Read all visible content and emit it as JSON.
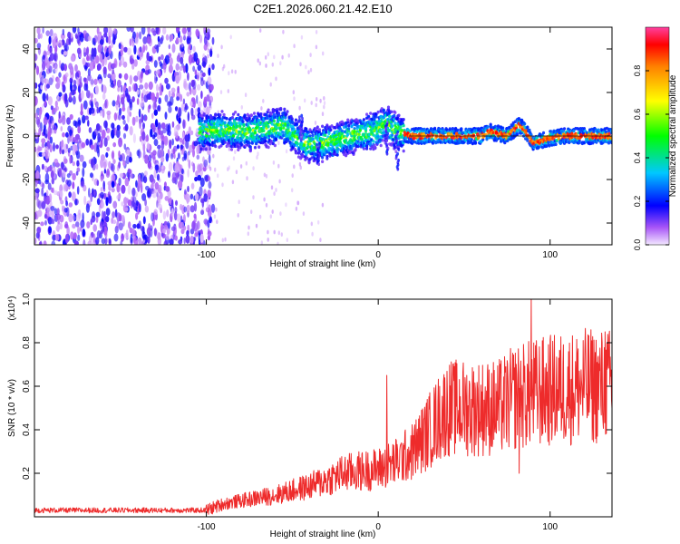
{
  "figure_title": "C2E1.2026.060.21.42.E10",
  "chart_data": [
    {
      "type": "heatmap",
      "title": "C2E1.2026.060.21.42.E10",
      "xlabel": "Height of straight line (km)",
      "ylabel": "Frequency (Hz)",
      "xlim": [
        -200,
        136
      ],
      "ylim": [
        -50,
        50
      ],
      "xticks": [
        -100,
        0,
        100
      ],
      "xtick_labels": [
        "-100",
        "0",
        "100"
      ],
      "yticks": [
        -40,
        -20,
        0,
        20,
        40
      ],
      "ytick_labels": [
        "-40",
        "-20",
        "0",
        "20",
        "40"
      ],
      "noise_region_x": [
        -200,
        -100
      ],
      "signal_center_hz": [
        {
          "x": -104,
          "y": 2
        },
        {
          "x": -90,
          "y": 3
        },
        {
          "x": -75,
          "y": 2
        },
        {
          "x": -60,
          "y": 4
        },
        {
          "x": -55,
          "y": 5
        },
        {
          "x": -50,
          "y": 1
        },
        {
          "x": -45,
          "y": -2
        },
        {
          "x": -40,
          "y": -4
        },
        {
          "x": -30,
          "y": -3
        },
        {
          "x": -20,
          "y": -1
        },
        {
          "x": -10,
          "y": 1
        },
        {
          "x": 0,
          "y": 3
        },
        {
          "x": 5,
          "y": 6
        },
        {
          "x": 10,
          "y": 2
        },
        {
          "x": 20,
          "y": 0
        },
        {
          "x": 40,
          "y": 0
        },
        {
          "x": 60,
          "y": 0
        },
        {
          "x": 65,
          "y": 2
        },
        {
          "x": 70,
          "y": 1
        },
        {
          "x": 75,
          "y": 0
        },
        {
          "x": 82,
          "y": 5
        },
        {
          "x": 85,
          "y": 3
        },
        {
          "x": 90,
          "y": -3
        },
        {
          "x": 100,
          "y": -1
        },
        {
          "x": 110,
          "y": 0
        },
        {
          "x": 136,
          "y": 0
        }
      ],
      "colorbar": {
        "label": "Normalized spectral amplitude",
        "range": [
          0,
          1
        ],
        "ticks": [
          "0.0",
          "0.2",
          "0.4",
          "0.6",
          "0.8"
        ],
        "stops": [
          {
            "v": 0.0,
            "c": "#f3e8ff"
          },
          {
            "v": 0.08,
            "c": "#a855f7"
          },
          {
            "v": 0.18,
            "c": "#0000ff"
          },
          {
            "v": 0.33,
            "c": "#00c8ff"
          },
          {
            "v": 0.5,
            "c": "#00ff00"
          },
          {
            "v": 0.66,
            "c": "#ffff00"
          },
          {
            "v": 0.82,
            "c": "#ff8000"
          },
          {
            "v": 0.92,
            "c": "#ff0000"
          },
          {
            "v": 1.0,
            "c": "#ff40a0"
          }
        ]
      }
    },
    {
      "type": "line",
      "xlabel": "Height of straight line (km)",
      "ylabel": "SNR (10 * v/v)",
      "yscale_label": "(x10⁴)",
      "xlim": [
        -200,
        136
      ],
      "ylim": [
        0,
        1.0
      ],
      "xticks": [
        -100,
        0,
        100
      ],
      "xtick_labels": [
        "-100",
        "0",
        "100"
      ],
      "yticks": [
        0.2,
        0.4,
        0.6,
        0.8,
        1.0
      ],
      "ytick_labels": [
        "0.2",
        "0.4",
        "0.6",
        "0.8",
        "1.0"
      ],
      "color": "#ee2b2b",
      "series": [
        {
          "name": "SNR",
          "trend": [
            {
              "x": -200,
              "y": 0.03
            },
            {
              "x": -100,
              "y": 0.03
            },
            {
              "x": -90,
              "y": 0.06
            },
            {
              "x": -60,
              "y": 0.1
            },
            {
              "x": -40,
              "y": 0.14
            },
            {
              "x": -20,
              "y": 0.2
            },
            {
              "x": 0,
              "y": 0.22
            },
            {
              "x": 10,
              "y": 0.25
            },
            {
              "x": 20,
              "y": 0.3
            },
            {
              "x": 30,
              "y": 0.4
            },
            {
              "x": 40,
              "y": 0.5
            },
            {
              "x": 55,
              "y": 0.5
            },
            {
              "x": 70,
              "y": 0.5
            },
            {
              "x": 80,
              "y": 0.55
            },
            {
              "x": 100,
              "y": 0.58
            },
            {
              "x": 120,
              "y": 0.6
            },
            {
              "x": 136,
              "y": 0.6
            }
          ],
          "spikes": [
            {
              "x": 5,
              "y": 0.65
            },
            {
              "x": 82,
              "y": 0.2
            },
            {
              "x": 89,
              "y": 1.0
            },
            {
              "x": 132,
              "y": 0.85
            }
          ]
        }
      ]
    }
  ]
}
